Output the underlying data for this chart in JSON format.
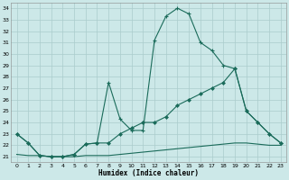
{
  "xlabel": "Humidex (Indice chaleur)",
  "background_color": "#cce8e8",
  "grid_color": "#aacccc",
  "line_color": "#1a6b5a",
  "xlim": [
    -0.5,
    23.5
  ],
  "ylim": [
    20.5,
    34.5
  ],
  "yticks": [
    21,
    22,
    23,
    24,
    25,
    26,
    27,
    28,
    29,
    30,
    31,
    32,
    33,
    34
  ],
  "xticks": [
    0,
    1,
    2,
    3,
    4,
    5,
    6,
    7,
    8,
    9,
    10,
    11,
    12,
    13,
    14,
    15,
    16,
    17,
    18,
    19,
    20,
    21,
    22,
    23
  ],
  "series1_x": [
    0,
    1,
    2,
    3,
    4,
    5,
    6,
    7,
    8,
    9,
    10,
    11,
    12,
    13,
    14,
    15,
    16,
    17,
    18,
    19,
    20,
    21,
    22,
    23
  ],
  "series1_y": [
    23.0,
    22.2,
    21.1,
    21.0,
    21.0,
    21.2,
    22.1,
    22.2,
    27.5,
    24.3,
    23.3,
    23.3,
    31.2,
    33.3,
    34.0,
    33.5,
    31.0,
    30.3,
    29.0,
    28.7,
    25.0,
    24.0,
    23.0,
    22.2
  ],
  "series2_x": [
    0,
    1,
    2,
    3,
    4,
    5,
    6,
    7,
    8,
    9,
    10,
    11,
    12,
    13,
    14,
    15,
    16,
    17,
    18,
    19,
    20,
    21,
    22,
    23
  ],
  "series2_y": [
    23.0,
    22.2,
    21.1,
    21.0,
    21.0,
    21.2,
    22.1,
    22.2,
    22.2,
    23.0,
    23.5,
    24.0,
    24.0,
    24.5,
    25.5,
    26.0,
    26.5,
    27.0,
    27.5,
    28.7,
    25.0,
    24.0,
    23.0,
    22.2
  ],
  "series3_x": [
    0,
    1,
    2,
    3,
    4,
    5,
    6,
    7,
    8,
    9,
    10,
    11,
    12,
    13,
    14,
    15,
    16,
    17,
    18,
    19,
    20,
    21,
    22,
    23
  ],
  "series3_y": [
    21.2,
    21.1,
    21.1,
    21.0,
    21.0,
    21.0,
    21.1,
    21.1,
    21.1,
    21.2,
    21.3,
    21.4,
    21.5,
    21.6,
    21.7,
    21.8,
    21.9,
    22.0,
    22.1,
    22.2,
    22.2,
    22.1,
    22.0,
    22.0
  ]
}
